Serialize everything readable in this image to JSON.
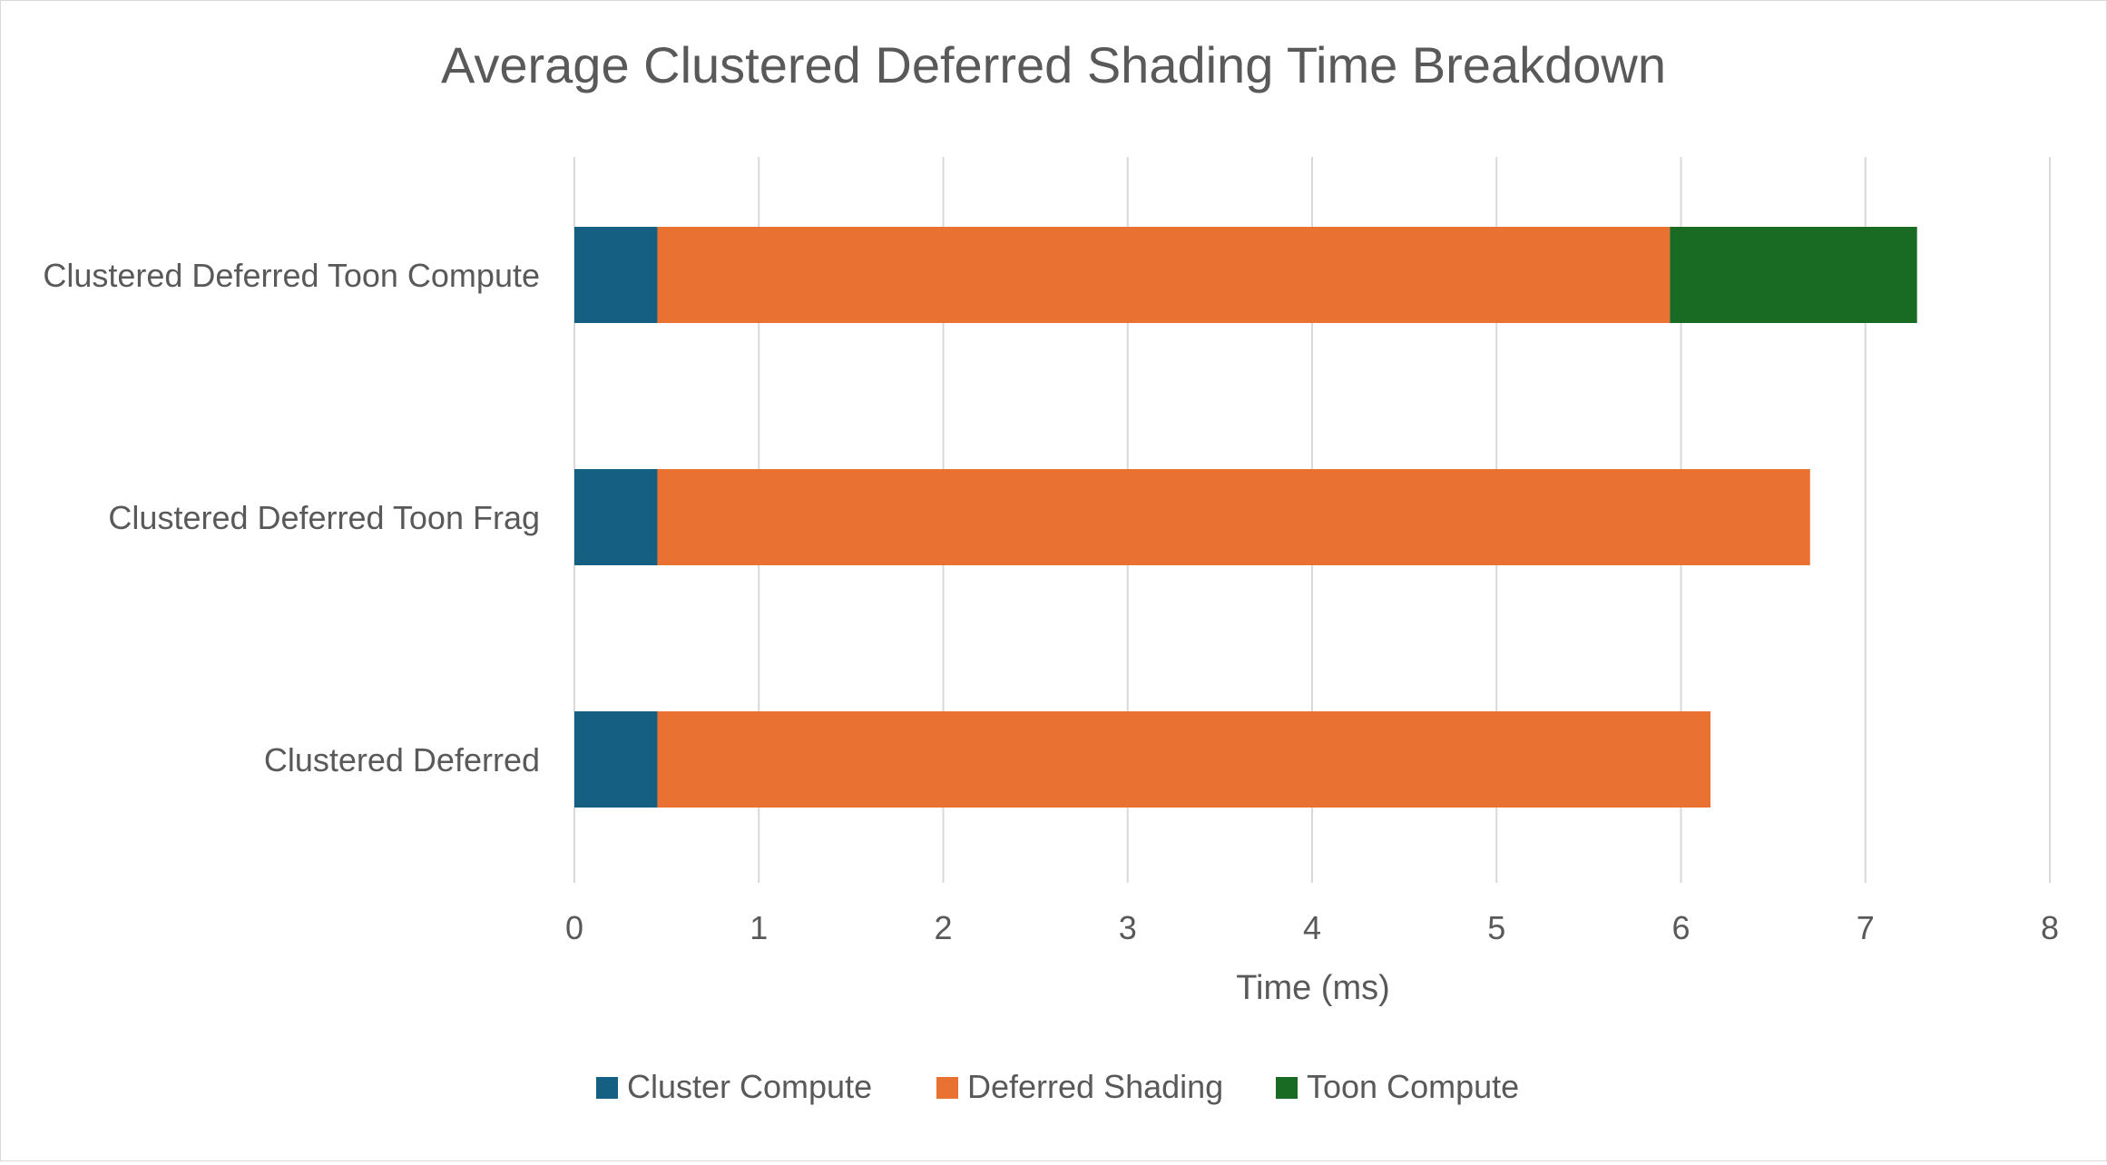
{
  "chart_data": {
    "type": "bar",
    "orientation": "horizontal",
    "stacked": true,
    "title": "Average Clustered Deferred Shading Time Breakdown",
    "xlabel": "Time (ms)",
    "ylabel": "",
    "xlim": [
      0,
      8
    ],
    "x_ticks": [
      "0",
      "1",
      "2",
      "3",
      "4",
      "5",
      "6",
      "7",
      "8"
    ],
    "grid": "vertical",
    "legend_position": "bottom",
    "categories": [
      "Clustered Deferred Toon Compute",
      "Clustered Deferred Toon Frag",
      "Clustered Deferred"
    ],
    "series": [
      {
        "name": "Cluster Compute",
        "color": "#155f82",
        "values": [
          0.45,
          0.45,
          0.45
        ]
      },
      {
        "name": "Deferred Shading",
        "color": "#e97132",
        "values": [
          5.49,
          6.25,
          5.71
        ]
      },
      {
        "name": "Toon Compute",
        "color": "#196b24",
        "values": [
          1.34,
          0,
          0
        ]
      }
    ]
  }
}
